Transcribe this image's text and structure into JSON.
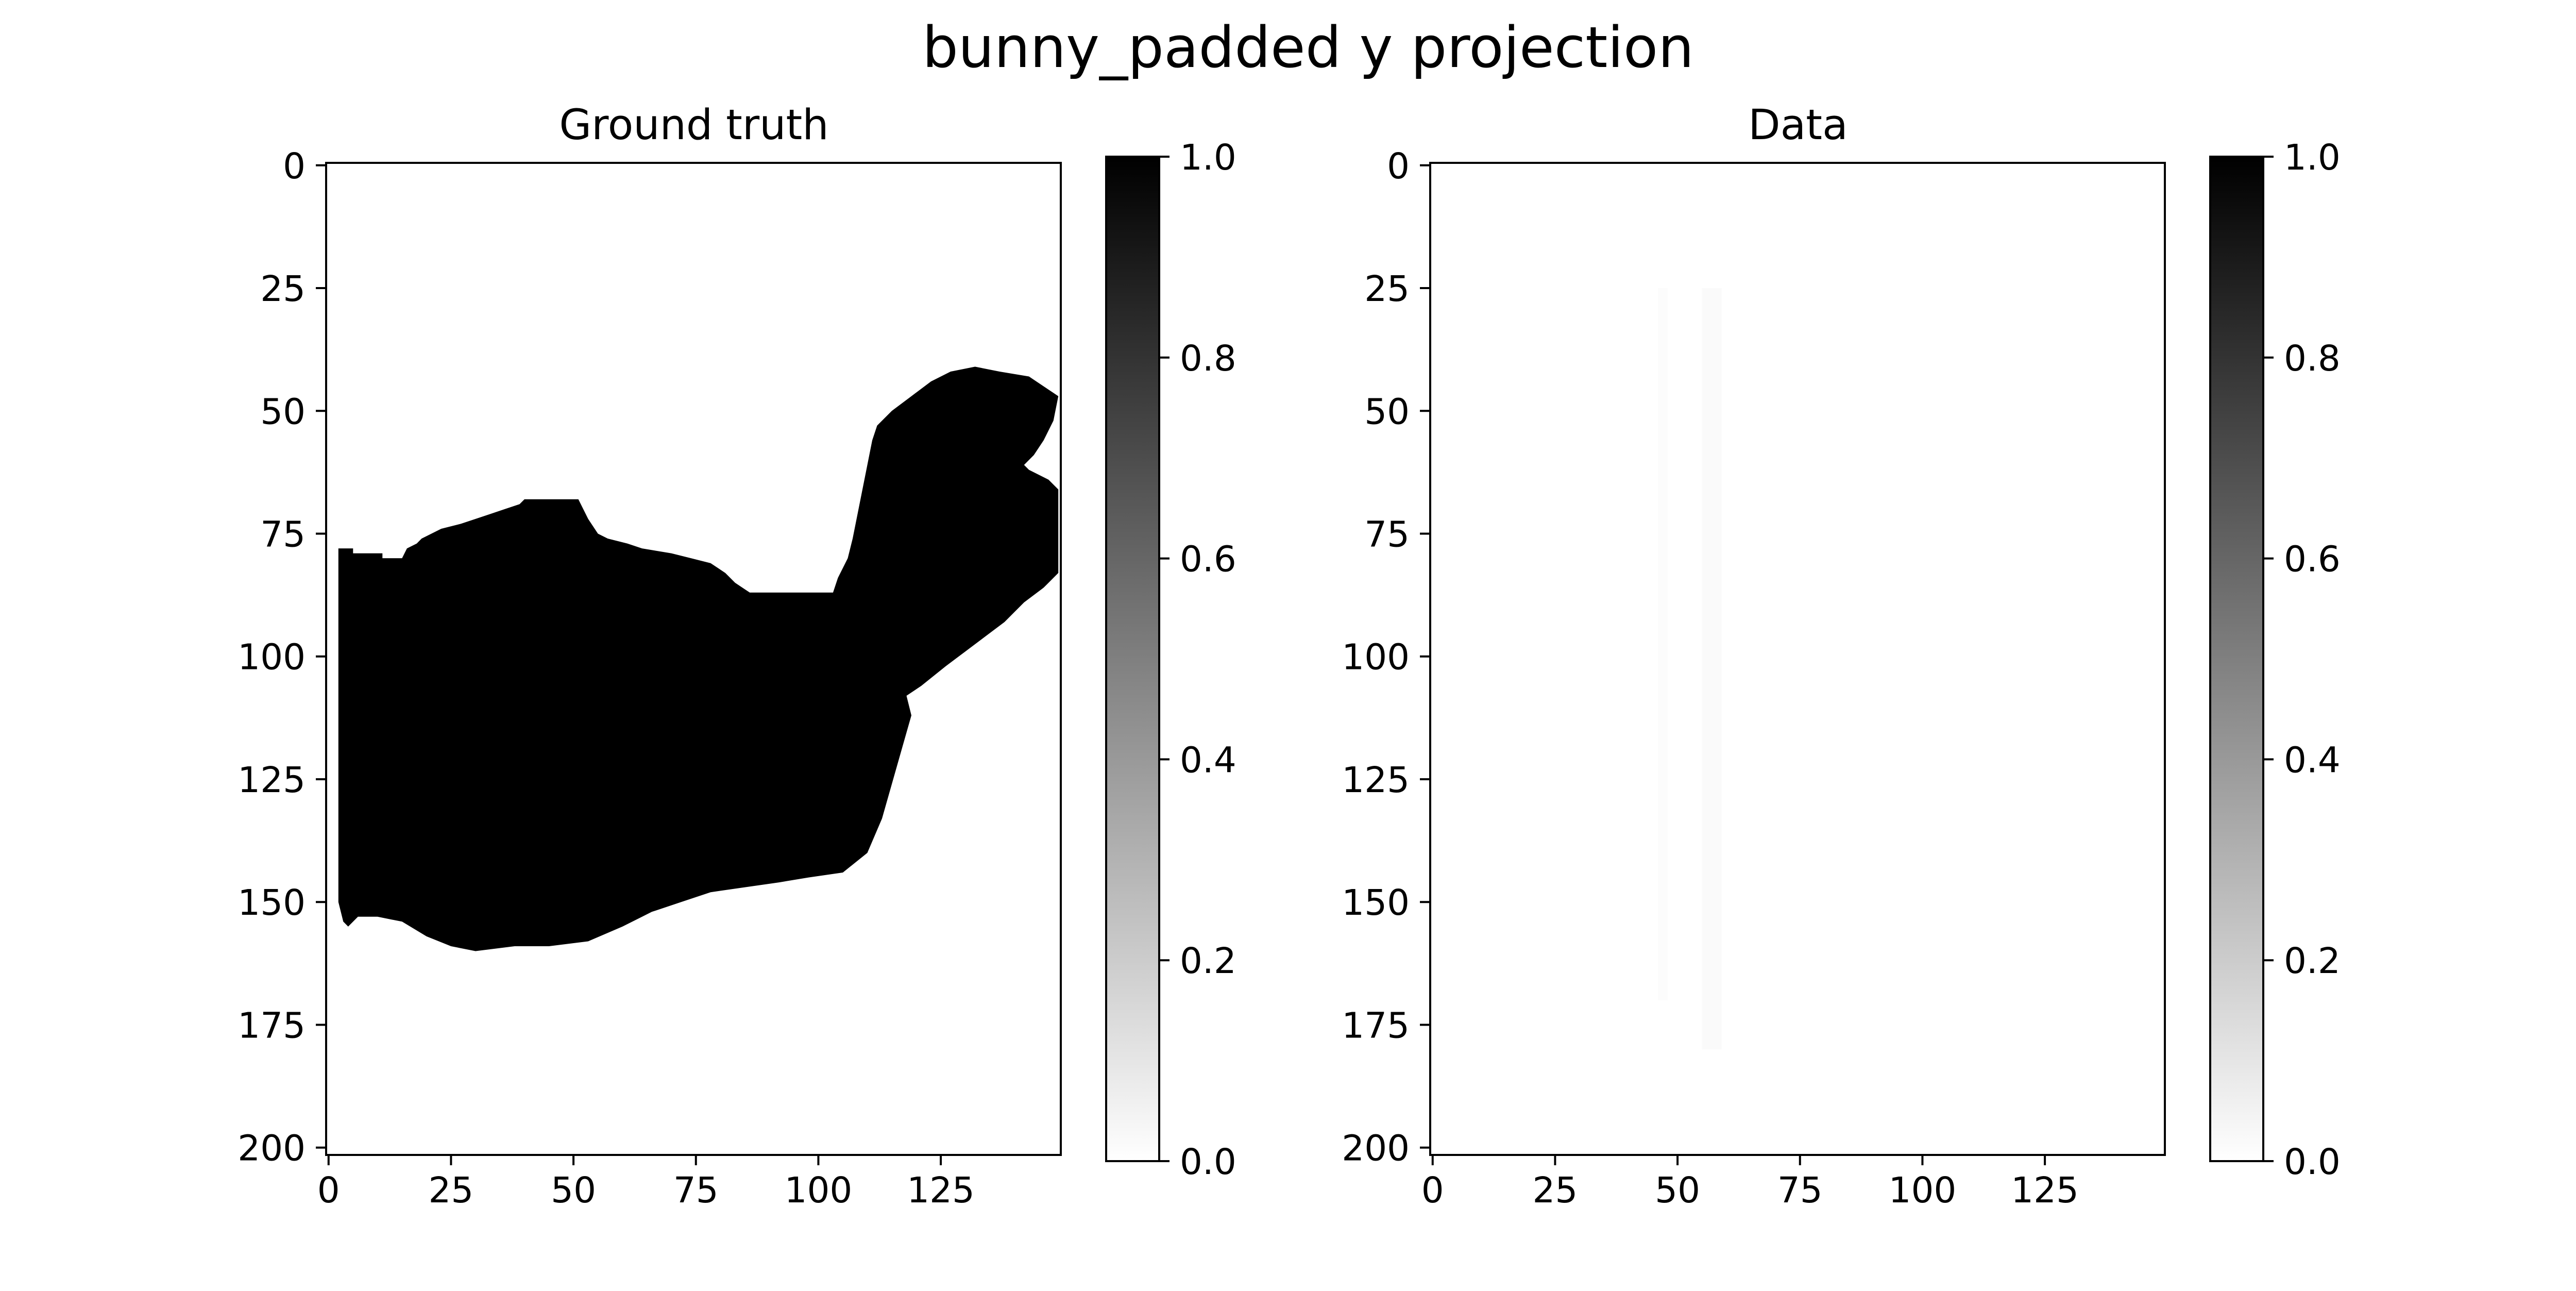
{
  "figure": {
    "title": "bunny_padded y projection"
  },
  "chart_data": [
    {
      "type": "heatmap",
      "title": "Ground truth",
      "colormap": "gray_r",
      "xlim": [
        -0.5,
        149.5
      ],
      "ylim": [
        201.5,
        -0.5
      ],
      "x_ticks": [
        0,
        25,
        50,
        75,
        100,
        125
      ],
      "y_ticks": [
        0,
        25,
        50,
        75,
        100,
        125,
        150,
        175,
        200
      ],
      "x_tick_labels": [
        "0",
        "25",
        "50",
        "75",
        "100",
        "125"
      ],
      "y_tick_labels": [
        "0",
        "25",
        "50",
        "75",
        "100",
        "125",
        "150",
        "175",
        "200"
      ],
      "colorbar": {
        "vmin": 0.0,
        "vmax": 1.0,
        "ticks": [
          0.0,
          0.2,
          0.4,
          0.6,
          0.8,
          1.0
        ],
        "tick_labels": [
          "0.0",
          "0.2",
          "0.4",
          "0.6",
          "0.8",
          "1.0"
        ]
      },
      "shape_value": 1.0,
      "background_value": 0.0,
      "shape_outline": [
        [
          2,
          78
        ],
        [
          5,
          78
        ],
        [
          5,
          79
        ],
        [
          11,
          79
        ],
        [
          11,
          80
        ],
        [
          15,
          80
        ],
        [
          16,
          78
        ],
        [
          18,
          77
        ],
        [
          19,
          76
        ],
        [
          21,
          75
        ],
        [
          23,
          74
        ],
        [
          27,
          73
        ],
        [
          30,
          72
        ],
        [
          33,
          71
        ],
        [
          36,
          70
        ],
        [
          39,
          69
        ],
        [
          40,
          68
        ],
        [
          51,
          68
        ],
        [
          53,
          72
        ],
        [
          55,
          75
        ],
        [
          57,
          76
        ],
        [
          61,
          77
        ],
        [
          64,
          78
        ],
        [
          70,
          79
        ],
        [
          74,
          80
        ],
        [
          78,
          81
        ],
        [
          81,
          83
        ],
        [
          83,
          85
        ],
        [
          86,
          87
        ],
        [
          103,
          87
        ],
        [
          104,
          84
        ],
        [
          106,
          80
        ],
        [
          107,
          76
        ],
        [
          108,
          71
        ],
        [
          109,
          66
        ],
        [
          110,
          61
        ],
        [
          111,
          56
        ],
        [
          112,
          53
        ],
        [
          115,
          50
        ],
        [
          119,
          47
        ],
        [
          123,
          44
        ],
        [
          127,
          42
        ],
        [
          132,
          41
        ],
        [
          137,
          42
        ],
        [
          143,
          43
        ],
        [
          146,
          45
        ],
        [
          149,
          47
        ],
        [
          148,
          52
        ],
        [
          146,
          56
        ],
        [
          144,
          59
        ],
        [
          142,
          61
        ],
        [
          143,
          62
        ],
        [
          147,
          64
        ],
        [
          149,
          66
        ],
        [
          149,
          83
        ],
        [
          146,
          86
        ],
        [
          142,
          89
        ],
        [
          138,
          93
        ],
        [
          134,
          96
        ],
        [
          130,
          99
        ],
        [
          126,
          102
        ],
        [
          121,
          106
        ],
        [
          118,
          108
        ],
        [
          119,
          112
        ],
        [
          117,
          119
        ],
        [
          115,
          126
        ],
        [
          113,
          133
        ],
        [
          110,
          140
        ],
        [
          105,
          144
        ],
        [
          98,
          145
        ],
        [
          92,
          146
        ],
        [
          85,
          147
        ],
        [
          78,
          148
        ],
        [
          72,
          150
        ],
        [
          66,
          152
        ],
        [
          60,
          155
        ],
        [
          53,
          158
        ],
        [
          45,
          159
        ],
        [
          38,
          159
        ],
        [
          30,
          160
        ],
        [
          25,
          159
        ],
        [
          20,
          157
        ],
        [
          15,
          154
        ],
        [
          10,
          153
        ],
        [
          6,
          153
        ],
        [
          4,
          155
        ],
        [
          3,
          154
        ],
        [
          2,
          150
        ]
      ]
    },
    {
      "type": "heatmap",
      "title": "Data",
      "colormap": "gray_r",
      "xlim": [
        -0.5,
        149.5
      ],
      "ylim": [
        201.5,
        -0.5
      ],
      "x_ticks": [
        0,
        25,
        50,
        75,
        100,
        125
      ],
      "y_ticks": [
        0,
        25,
        50,
        75,
        100,
        125,
        150,
        175,
        200
      ],
      "x_tick_labels": [
        "0",
        "25",
        "50",
        "75",
        "100",
        "125"
      ],
      "y_tick_labels": [
        "0",
        "25",
        "50",
        "75",
        "100",
        "125",
        "150",
        "175",
        "200"
      ],
      "colorbar": {
        "vmin": 0.0,
        "vmax": 1.0,
        "ticks": [
          0.0,
          0.2,
          0.4,
          0.6,
          0.8,
          1.0
        ],
        "tick_labels": [
          "0.0",
          "0.2",
          "0.4",
          "0.6",
          "0.8",
          "1.0"
        ]
      },
      "background_value": 0.0,
      "faint_columns": [
        {
          "x": [
            46,
            48
          ],
          "y": [
            25,
            170
          ],
          "value": 0.01
        },
        {
          "x": [
            55,
            59
          ],
          "y": [
            25,
            180
          ],
          "value": 0.02
        }
      ]
    }
  ]
}
